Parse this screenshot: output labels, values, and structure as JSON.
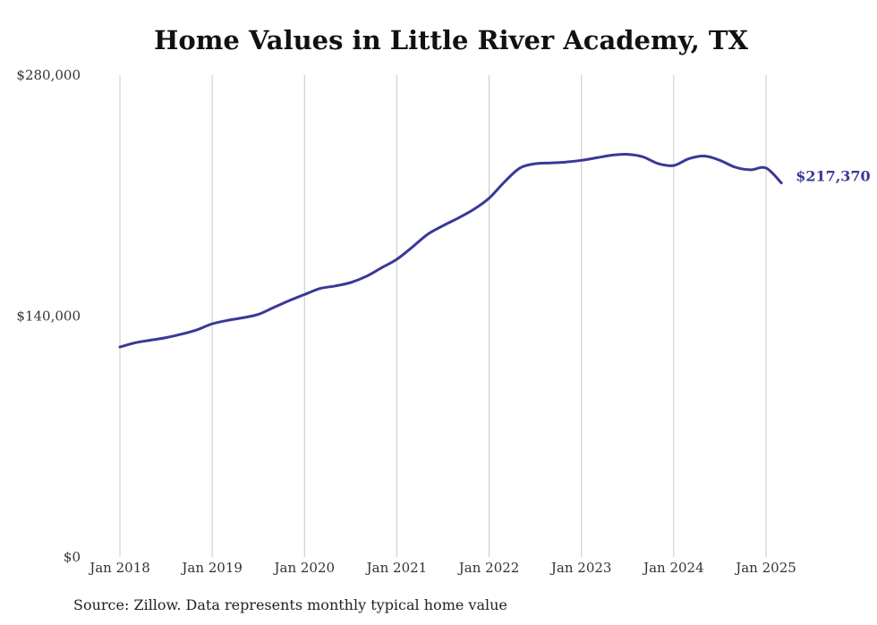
{
  "colors": {
    "line": "#3a3896",
    "grid": "#c8c8c8",
    "text": "#333333"
  },
  "chart_data": {
    "type": "line",
    "title": "Home Values in Little River Academy, TX",
    "source": "Source: Zillow. Data represents monthly typical home value",
    "ylim": [
      0,
      280000
    ],
    "y_ticks": [
      {
        "value": 0,
        "label": "$0"
      },
      {
        "value": 140000,
        "label": "$140,000"
      },
      {
        "value": 280000,
        "label": "$280,000"
      }
    ],
    "x_ticks": [
      {
        "value": 2018.0,
        "label": "Jan 2018"
      },
      {
        "value": 2019.0,
        "label": "Jan 2019"
      },
      {
        "value": 2020.0,
        "label": "Jan 2020"
      },
      {
        "value": 2021.0,
        "label": "Jan 2021"
      },
      {
        "value": 2022.0,
        "label": "Jan 2022"
      },
      {
        "value": 2023.0,
        "label": "Jan 2023"
      },
      {
        "value": 2024.0,
        "label": "Jan 2024"
      },
      {
        "value": 2025.0,
        "label": "Jan 2025"
      }
    ],
    "grid": "vertical",
    "end_label": "$217,370",
    "series": [
      {
        "x": [
          "2018-01",
          "2018-03",
          "2018-05",
          "2018-07",
          "2018-09",
          "2018-11",
          "2019-01",
          "2019-03",
          "2019-05",
          "2019-07",
          "2019-09",
          "2019-11",
          "2020-01",
          "2020-03",
          "2020-05",
          "2020-07",
          "2020-09",
          "2020-11",
          "2021-01",
          "2021-03",
          "2021-05",
          "2021-07",
          "2021-09",
          "2021-11",
          "2022-01",
          "2022-03",
          "2022-05",
          "2022-07",
          "2022-09",
          "2022-11",
          "2023-01",
          "2023-03",
          "2023-05",
          "2023-07",
          "2023-09",
          "2023-11",
          "2024-01",
          "2024-03",
          "2024-05",
          "2024-07",
          "2024-09",
          "2024-11",
          "2025-01",
          "2025-03"
        ],
        "y": [
          122000,
          124500,
          126000,
          127500,
          129500,
          132000,
          135500,
          137500,
          139000,
          141000,
          145000,
          149000,
          152500,
          156000,
          157500,
          159500,
          163000,
          168000,
          173000,
          180000,
          187500,
          192500,
          197000,
          202000,
          208500,
          218000,
          226000,
          228500,
          229000,
          229500,
          230500,
          232000,
          233500,
          234000,
          232500,
          228500,
          227500,
          231500,
          233000,
          230500,
          226500,
          225000,
          226000,
          217370
        ]
      }
    ]
  }
}
